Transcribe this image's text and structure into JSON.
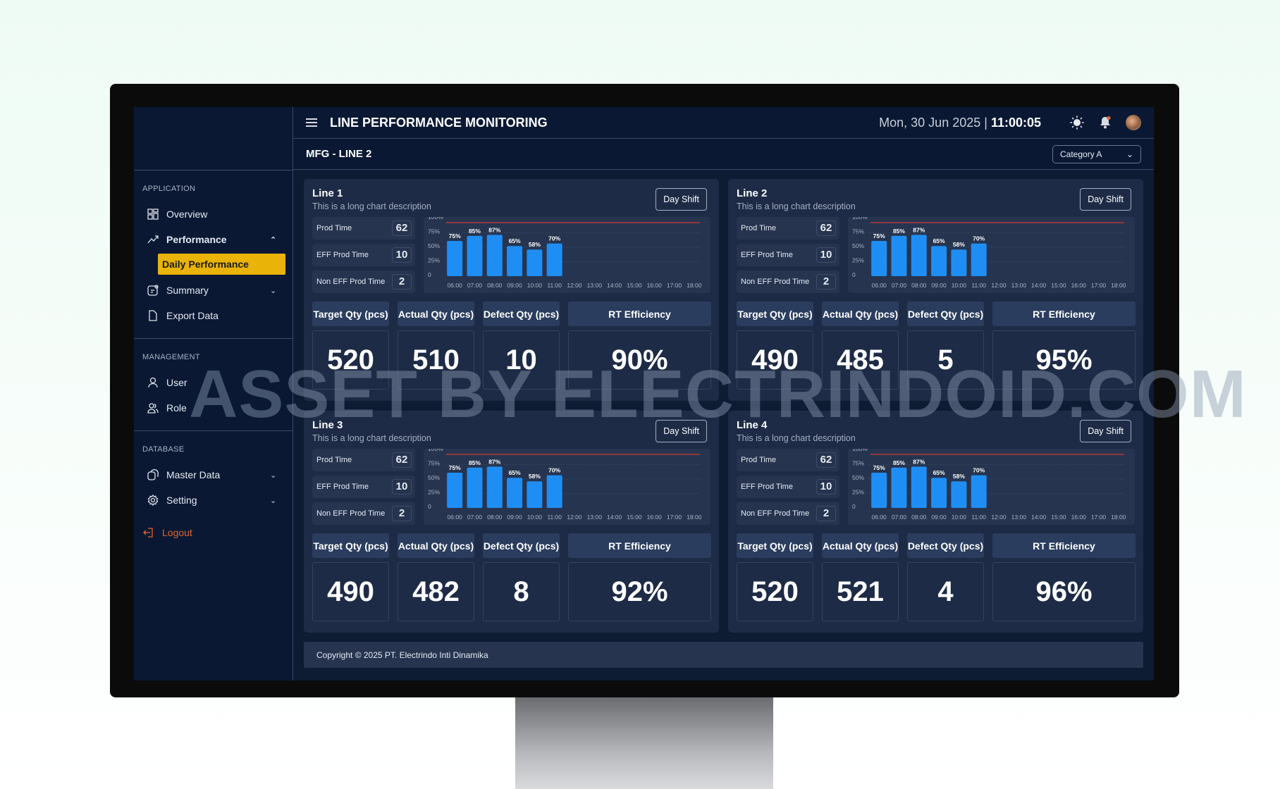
{
  "header": {
    "title": "LINE PERFORMANCE MONITORING",
    "date": "Mon, 30 Jun 2025",
    "separator": " | ",
    "time": "11:00:05",
    "icons": [
      "menu-icon",
      "sun-icon",
      "bell-icon",
      "avatar"
    ]
  },
  "subheader": {
    "title": "MFG - LINE 2",
    "category": "Category A"
  },
  "sidebar": {
    "sections": [
      {
        "heading": "APPLICATION",
        "items": [
          {
            "label": "Overview",
            "icon": "grid-icon"
          },
          {
            "label": "Performance",
            "icon": "trend-icon",
            "expanded": true,
            "sub": "Daily Performance"
          },
          {
            "label": "Summary",
            "icon": "summary-icon"
          },
          {
            "label": "Export Data",
            "icon": "file-icon"
          }
        ]
      },
      {
        "heading": "MANAGEMENT",
        "items": [
          {
            "label": "User",
            "icon": "user-icon"
          },
          {
            "label": "Role",
            "icon": "users-icon"
          }
        ]
      },
      {
        "heading": "DATABASE",
        "items": [
          {
            "label": "Master Data",
            "icon": "database-icon"
          },
          {
            "label": "Setting",
            "icon": "gear-icon"
          }
        ]
      }
    ],
    "logout": "Logout"
  },
  "colors": {
    "accent": "#eab308",
    "bar": "#1e8ef5",
    "target_line": "#b23a3a",
    "logout": "#e0662f"
  },
  "kpi_labels": [
    "Target Qty (pcs)",
    "Actual Qty (pcs)",
    "Defect Qty (pcs)",
    "RT Efficiency"
  ],
  "stat_labels": [
    "Prod Time",
    "EFF Prod Time",
    "Non EFF Prod Time"
  ],
  "cards": [
    {
      "title": "Line 1",
      "desc": "This is a long chart description",
      "shift": "Day Shift",
      "stats": [
        "62",
        "10",
        "2"
      ],
      "kpi": [
        "520",
        "510",
        "10",
        "90%"
      ]
    },
    {
      "title": "Line 2",
      "desc": "This is a long chart description",
      "shift": "Day Shift",
      "stats": [
        "62",
        "10",
        "2"
      ],
      "kpi": [
        "490",
        "485",
        "5",
        "95%"
      ]
    },
    {
      "title": "Line 3",
      "desc": "This is a long chart description",
      "shift": "Day Shift",
      "stats": [
        "62",
        "10",
        "2"
      ],
      "kpi": [
        "490",
        "482",
        "8",
        "92%"
      ]
    },
    {
      "title": "Line 4",
      "desc": "This is a long chart description",
      "shift": "Day Shift",
      "stats": [
        "62",
        "10",
        "2"
      ],
      "kpi": [
        "520",
        "521",
        "4",
        "96%"
      ]
    }
  ],
  "chart_data": {
    "type": "bar",
    "categories": [
      "06:00",
      "07:00",
      "08:00",
      "09:00",
      "10:00",
      "11:00",
      "12:00",
      "13:00",
      "14:00",
      "15:00",
      "16:00",
      "17:00",
      "18:00"
    ],
    "values": [
      75,
      85,
      87,
      65,
      58,
      70,
      null,
      null,
      null,
      null,
      null,
      null,
      null
    ],
    "yticks": [
      "0",
      "25%",
      "50%",
      "75%",
      "100%"
    ],
    "ylim": [
      0,
      100
    ],
    "target": 100,
    "grid": true
  },
  "footer": "Copyright © 2025 PT. Electrindo Inti Dinamika",
  "watermark": "ASSET BY ELECTRINDOID.COM"
}
